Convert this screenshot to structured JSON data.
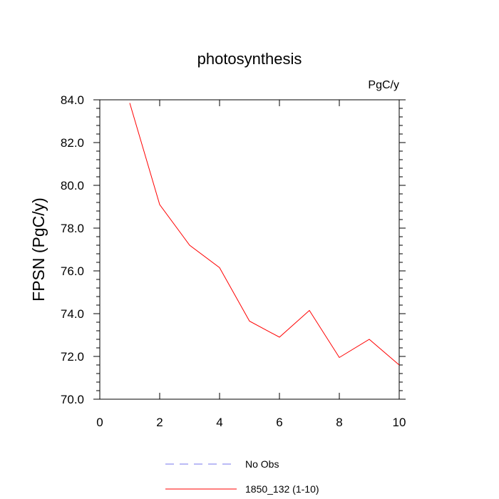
{
  "chart_data": {
    "type": "line",
    "title": "photosynthesis",
    "units_label": "PgC/y",
    "xlabel": "",
    "ylabel": "FPSN  (PgC/y)",
    "xlim": [
      0,
      10
    ],
    "ylim": [
      70.0,
      84.0
    ],
    "x_ticks": [
      0,
      2,
      4,
      6,
      8,
      10
    ],
    "x_tick_labels": [
      "0",
      "2",
      "4",
      "6",
      "8",
      "10"
    ],
    "y_ticks": [
      70.0,
      72.0,
      74.0,
      76.0,
      78.0,
      80.0,
      82.0,
      84.0
    ],
    "y_tick_labels": [
      "70.0",
      "72.0",
      "74.0",
      "76.0",
      "78.0",
      "80.0",
      "82.0",
      "84.0"
    ],
    "grid": false,
    "legend_position": "bottom",
    "series": [
      {
        "name": "No Obs",
        "color": "#7777ee",
        "style": "dashed",
        "x": [],
        "values": []
      },
      {
        "name": "1850_132 (1-10)",
        "color": "#ff0000",
        "style": "solid",
        "x": [
          1,
          2,
          3,
          4,
          5,
          6,
          7,
          8,
          9,
          10
        ],
        "values": [
          83.85,
          79.1,
          77.2,
          76.15,
          73.65,
          72.9,
          74.15,
          71.95,
          72.8,
          71.6
        ]
      }
    ]
  }
}
